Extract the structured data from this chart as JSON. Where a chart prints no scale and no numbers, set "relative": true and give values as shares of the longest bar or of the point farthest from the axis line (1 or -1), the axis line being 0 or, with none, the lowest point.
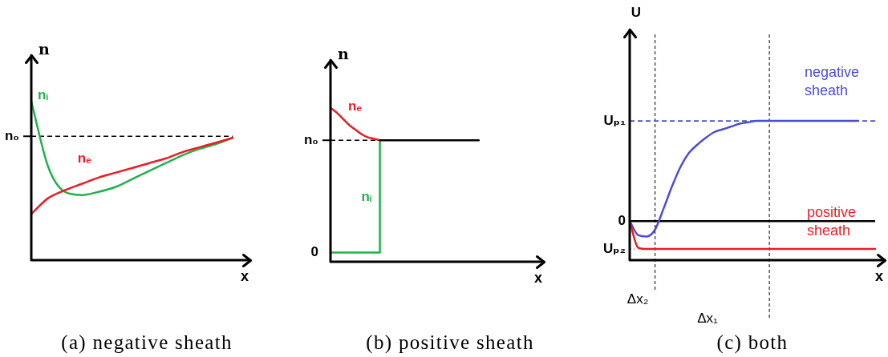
{
  "chart_data": [
    {
      "type": "line",
      "relative": true,
      "xlabel": "x",
      "ylabel": "n",
      "annotations": [
        "(a) negative sheath"
      ],
      "categories": [
        null,
        null,
        null,
        null,
        null,
        null,
        null,
        null,
        null,
        null,
        null,
        null,
        null
      ],
      "series": [
        {
          "name": "nᵢ",
          "color": "#22b14c",
          "values": [
            1.0,
            0.59,
            0.43,
            0.41,
            0.43,
            0.46,
            0.51,
            0.56,
            0.61,
            0.66,
            0.7,
            0.73,
            0.77
          ]
        },
        {
          "name": "nₑ",
          "color": "#ed1c24",
          "values": [
            0.29,
            0.39,
            0.44,
            0.48,
            0.52,
            0.55,
            0.58,
            0.61,
            0.64,
            0.68,
            0.71,
            0.74,
            0.77
          ]
        }
      ],
      "ref_lines": [
        {
          "axis": "y",
          "value": 0.78,
          "label": "n₀",
          "line_style": "dashed",
          "color": "#000000"
        }
      ]
    },
    {
      "type": "line",
      "relative": true,
      "xlabel": "x",
      "ylabel": "n",
      "annotations": [
        "0",
        "(b) positive sheath"
      ],
      "categories": [
        null,
        null,
        null,
        null,
        null,
        null,
        null,
        null,
        null,
        null,
        null,
        null,
        null,
        null,
        null,
        null,
        null,
        null,
        null,
        null,
        null,
        null,
        null,
        null,
        null,
        null,
        null,
        null,
        null,
        null,
        null,
        null,
        null,
        null
      ],
      "series": [
        {
          "name": "nₑ",
          "color": "#ed1c24",
          "values": [
            1.0,
            0.97,
            0.93,
            0.89,
            0.86,
            0.83,
            0.81,
            0.8,
            0.79,
            null,
            null,
            null,
            null,
            null,
            null,
            null,
            null,
            null,
            null,
            null,
            null,
            null,
            null,
            null,
            null,
            null,
            null,
            null,
            null,
            null,
            null,
            null,
            null,
            null
          ]
        },
        {
          "name": "nᵢ",
          "type": "step",
          "color": "#22b14c",
          "values": [
            0.06,
            0.06,
            0.06,
            0.06,
            0.06,
            0.06,
            0.06,
            0.06,
            0.79,
            null,
            null,
            null,
            null,
            null,
            null,
            null,
            null,
            null,
            null,
            null,
            null,
            null,
            null,
            null,
            null,
            null,
            null,
            null,
            null,
            null,
            null,
            null,
            null,
            null
          ]
        },
        {
          "color": "#000000",
          "values": [
            null,
            null,
            null,
            null,
            null,
            null,
            null,
            null,
            0.79,
            0.79,
            0.79,
            0.79,
            0.79,
            0.79,
            0.79,
            0.79,
            0.79,
            0.79,
            0.79,
            0.79,
            0.79,
            0.79,
            0.79,
            0.79,
            0.79,
            null,
            null,
            null,
            null,
            null,
            null,
            null,
            null,
            null
          ]
        }
      ],
      "ref_lines": [
        {
          "axis": "y",
          "value": 0.79,
          "label": "n₀",
          "line_style": "dashed",
          "color": "#000000"
        }
      ]
    },
    {
      "type": "line",
      "relative": true,
      "xlabel": "x",
      "ylabel": "U",
      "annotations": [
        "Δx₂",
        "Δx₁",
        "(c) both"
      ],
      "categories": [
        null,
        null,
        null,
        null,
        null,
        null,
        null,
        null,
        null,
        null,
        null,
        null,
        null,
        null,
        null,
        null,
        null,
        null,
        null,
        null,
        null,
        null,
        null,
        null,
        null,
        null,
        null,
        null,
        null,
        null
      ],
      "series": [
        {
          "name": "negative sheath",
          "color": "#4c4cd6",
          "values": [
            0.28,
            0.18,
            0.17,
            0.22,
            0.37,
            0.53,
            0.67,
            0.77,
            0.83,
            0.88,
            0.92,
            0.94,
            0.96,
            0.98,
            0.99,
            1,
            1,
            1,
            1,
            1,
            1,
            1,
            1,
            1,
            1,
            1,
            1,
            1,
            null,
            null
          ]
        },
        {
          "name": "positive sheath",
          "color": "#ed1c24",
          "values": [
            0.28,
            0.09,
            0.08,
            0.08,
            0.08,
            0.08,
            0.08,
            0.08,
            0.08,
            0.08,
            0.08,
            0.08,
            0.08,
            0.08,
            0.08,
            0.08,
            0.08,
            0.08,
            0.08,
            0.08,
            0.08,
            0.08,
            0.08,
            0.08,
            0.08,
            0.08,
            0.08,
            0.08,
            0.08,
            0.08
          ]
        }
      ],
      "ref_lines": [
        {
          "axis": "y",
          "value": 1,
          "label": "Uₚ₁",
          "line_style": "dashed",
          "color": "#4c4cd6"
        },
        {
          "axis": "y",
          "value": 0.28,
          "label": "0",
          "line_style": "solid",
          "color": "#000000"
        },
        {
          "axis": "y",
          "value": 0.08,
          "label": "Uₚ₂",
          "line_style": "dotted",
          "color": "#f4a6a6"
        }
      ]
    }
  ]
}
